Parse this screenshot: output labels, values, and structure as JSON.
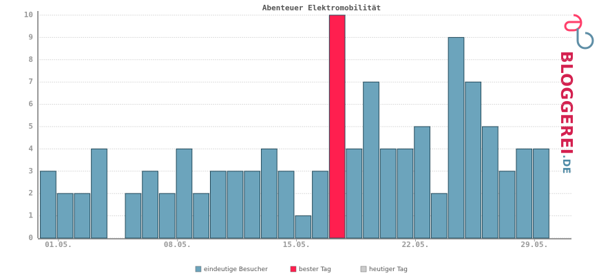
{
  "chart_data": {
    "type": "bar",
    "title": "Abenteuer Elektromobilität",
    "categories": [
      "01.05.",
      null,
      null,
      null,
      null,
      null,
      null,
      "08.05.",
      null,
      null,
      null,
      null,
      null,
      null,
      "15.05.",
      null,
      null,
      null,
      null,
      null,
      null,
      "22.05.",
      null,
      null,
      null,
      null,
      null,
      null,
      "29.05.",
      null,
      null
    ],
    "series": [
      {
        "name": "eindeutige Besucher",
        "color": "#6ca4bc",
        "values": [
          3,
          2,
          2,
          4,
          0,
          2,
          3,
          2,
          4,
          2,
          3,
          3,
          3,
          4,
          3,
          1,
          3,
          null,
          4,
          7,
          4,
          4,
          5,
          2,
          9,
          7,
          5,
          3,
          4,
          4,
          null
        ]
      },
      {
        "name": "bester Tag",
        "color": "#ff1f4f",
        "values": [
          null,
          null,
          null,
          null,
          null,
          null,
          null,
          null,
          null,
          null,
          null,
          null,
          null,
          null,
          null,
          null,
          null,
          10,
          null,
          null,
          null,
          null,
          null,
          null,
          null,
          null,
          null,
          null,
          null,
          null,
          null
        ]
      },
      {
        "name": "heutiger Tag",
        "color": "#cccccc",
        "values": [
          null,
          null,
          null,
          null,
          null,
          null,
          null,
          null,
          null,
          null,
          null,
          null,
          null,
          null,
          null,
          null,
          null,
          null,
          null,
          null,
          null,
          null,
          null,
          null,
          null,
          null,
          null,
          null,
          null,
          null,
          null
        ]
      }
    ],
    "ylim": [
      0,
      10
    ],
    "yticks": [
      0,
      1,
      2,
      3,
      4,
      5,
      6,
      7,
      8,
      9,
      10
    ],
    "grid": true
  },
  "logo": {
    "name": "BLOGGEREI",
    "tld": ".DE"
  }
}
